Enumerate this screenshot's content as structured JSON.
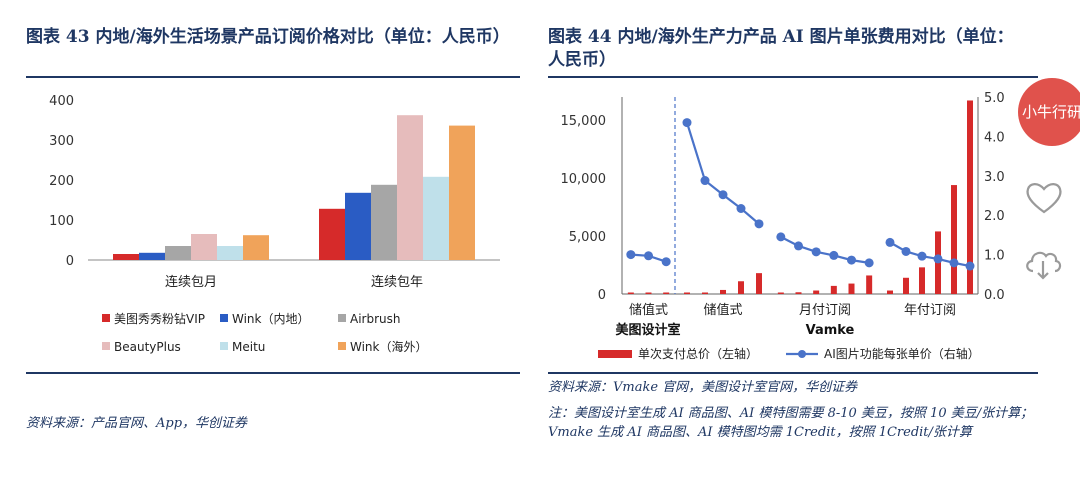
{
  "left": {
    "title": "图表 43  内地/海外生活场景产品订阅价格对比（单位：人民币）",
    "source": "资料来源：产品官网、App，华创证券",
    "chart_data": {
      "type": "bar",
      "categories": [
        "连续包月",
        "连续包年"
      ],
      "ylim": [
        0,
        400
      ],
      "yticks": [
        "0",
        "100",
        "200",
        "300",
        "400"
      ],
      "legend_position": "bottom",
      "series": [
        {
          "name": "美图秀秀粉钻VIP",
          "color": "#d62a2a",
          "values": [
            15,
            128
          ]
        },
        {
          "name": "Wink（内地）",
          "color": "#2a5cc4",
          "values": [
            18,
            168
          ]
        },
        {
          "name": "Airbrush",
          "color": "#a6a6a6",
          "values": [
            35,
            188
          ]
        },
        {
          "name": "BeautyPlus",
          "color": "#e6bcbc",
          "values": [
            65,
            362
          ]
        },
        {
          "name": "Meitu",
          "color": "#bfe0ea",
          "values": [
            35,
            208
          ]
        },
        {
          "name": "Wink（海外）",
          "color": "#f0a35a",
          "values": [
            62,
            336
          ]
        }
      ]
    }
  },
  "right": {
    "title": "图表 44  内地/海外生产力产品 AI 图片单张费用对比（单位：人民币）",
    "source": "资料来源：Vmake 官网，美图设计室官网，华创证券",
    "note": "注：美图设计室生成 AI 商品图、AI 模特图需要 8-10 美豆，按照 10 美豆/张计算；Vmake 生成 AI 商品图、AI 模特图均需 1Credit，按照 1Credit/张计算",
    "chart_data": {
      "type": "bar+line",
      "y_left_lim": [
        0,
        17000
      ],
      "y_left_ticks": [
        "0",
        "5,000",
        "10,000",
        "15,000"
      ],
      "y_right_lim": [
        0,
        5.0
      ],
      "y_right_ticks": [
        "0.0",
        "1.0",
        "2.0",
        "3.0",
        "4.0",
        "5.0"
      ],
      "legend_position": "bottom",
      "groups": [
        {
          "label": "储值式",
          "brand": "美图设计室",
          "bars": [
            10,
            20,
            30
          ],
          "line": [
            1.0,
            0.97,
            0.82
          ]
        },
        {
          "label": "储值式",
          "brand": "",
          "bars": [
            40,
            120,
            350,
            1100,
            1800
          ],
          "line": [
            4.35,
            2.88,
            2.52,
            2.17,
            1.78
          ]
        },
        {
          "label": "月付订阅",
          "brand": "Vamke",
          "bars": [
            60,
            150,
            300,
            700,
            900,
            1600
          ],
          "line": [
            1.45,
            1.22,
            1.07,
            0.98,
            0.86,
            0.79
          ]
        },
        {
          "label": "年付订阅",
          "brand": "",
          "bars": [
            300,
            1400,
            2300,
            5400,
            9400,
            16700
          ],
          "line": [
            1.31,
            1.08,
            0.96,
            0.89,
            0.79,
            0.71
          ]
        }
      ],
      "series": [
        {
          "name": "单次支付总价（左轴）",
          "color": "#d62a2a"
        },
        {
          "name": "AI图片功能每张单价（右轴）",
          "color": "#4a73c9"
        }
      ]
    }
  },
  "badge": {
    "label": "小牛行研",
    "color": "#e0524c"
  },
  "icons": {
    "heart": "heart-icon",
    "download": "cloud-download-icon"
  }
}
